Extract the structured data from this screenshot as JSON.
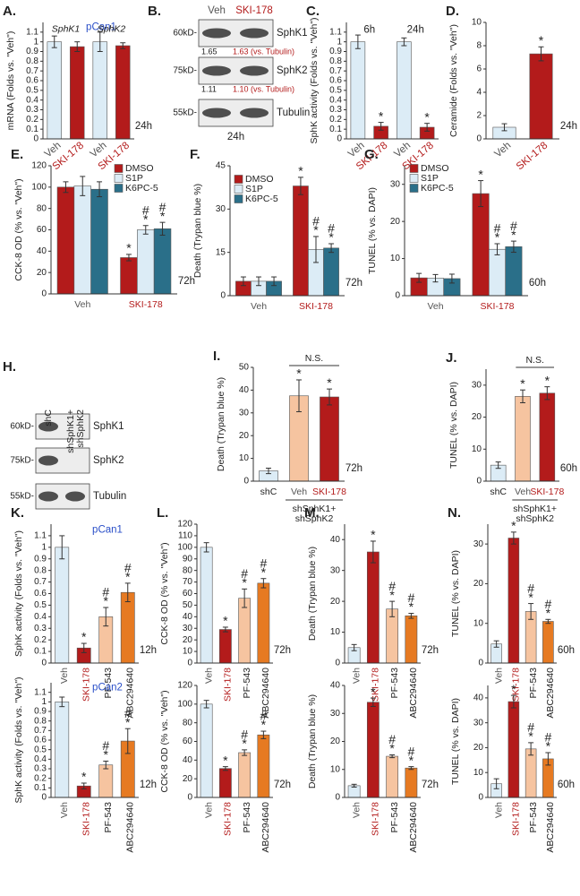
{
  "chart_data": [
    {
      "type": "bar",
      "panel": "A.",
      "ylabel": "mRNA (Folds vs. \"Veh\")",
      "ylim": [
        0,
        1.2
      ],
      "yticks": [
        0,
        0.1,
        0.2,
        0.3,
        0.4,
        0.5,
        0.6,
        0.7,
        0.8,
        0.9,
        1,
        1.1
      ],
      "categories": [
        "Veh",
        "SKI-178",
        "Veh",
        "SKI-178"
      ],
      "label_colors": [
        "#555555",
        "#b31b1b",
        "#555555",
        "#b31b1b"
      ],
      "values": [
        1.0,
        0.95,
        1.0,
        0.96
      ],
      "errors": [
        0.06,
        0.05,
        0.1,
        0.03
      ],
      "colors": [
        "#dcecf6",
        "#b31b1b",
        "#dcecf6",
        "#b31b1b"
      ],
      "cell_line": "pCan1",
      "series_labels": [
        "SphK1",
        "SphK2"
      ],
      "time": "24h"
    },
    {
      "type": "bar",
      "panel": "C.",
      "ylabel": "SphK activity (Folds vs. \"Veh\")",
      "ylim": [
        0,
        1.2
      ],
      "yticks": [
        0,
        0.1,
        0.2,
        0.3,
        0.4,
        0.5,
        0.6,
        0.7,
        0.8,
        0.9,
        1,
        1.1
      ],
      "categories": [
        "Veh",
        "SKI-178",
        "Veh",
        "SKI-178"
      ],
      "label_colors": [
        "#555555",
        "#b31b1b",
        "#555555",
        "#b31b1b"
      ],
      "values": [
        1.0,
        0.13,
        1.0,
        0.12
      ],
      "errors": [
        0.07,
        0.04,
        0.04,
        0.04
      ],
      "colors": [
        "#dcecf6",
        "#b31b1b",
        "#dcecf6",
        "#b31b1b"
      ],
      "annotations": [
        null,
        [
          "*"
        ],
        null,
        [
          "*"
        ]
      ],
      "time_labels": [
        "6h",
        "24h"
      ]
    },
    {
      "type": "bar",
      "panel": "D.",
      "ylabel": "Ceramide (Folds vs. \"Veh\")",
      "ylim": [
        0,
        10
      ],
      "yticks": [
        0,
        2,
        4,
        6,
        8,
        10
      ],
      "categories": [
        "Veh",
        "SKI-178"
      ],
      "label_colors": [
        "#555555",
        "#b31b1b"
      ],
      "values": [
        1.0,
        7.3
      ],
      "errors": [
        0.3,
        0.6
      ],
      "colors": [
        "#dcecf6",
        "#b31b1b"
      ],
      "annotations": [
        null,
        [
          "*"
        ]
      ],
      "time": "24h"
    },
    {
      "type": "bar",
      "panel": "E.",
      "ylabel": "CCK-8 OD (% vs. \"Veh\")",
      "ylim": [
        0,
        120
      ],
      "yticks": [
        0,
        20,
        40,
        60,
        80,
        100,
        120
      ],
      "categories": [
        "Veh",
        "SKI-178"
      ],
      "label_colors": [
        "#555555",
        "#b31b1b"
      ],
      "series": [
        {
          "name": "DMSO",
          "color": "#b31b1b",
          "values": [
            100,
            34
          ],
          "errors": [
            5,
            3
          ],
          "annotations": [
            null,
            [
              "*"
            ]
          ]
        },
        {
          "name": "S1P",
          "color": "#dcecf6",
          "values": [
            101,
            60
          ],
          "errors": [
            9,
            4
          ],
          "annotations": [
            null,
            [
              "#",
              "*"
            ]
          ]
        },
        {
          "name": "K6PC-5",
          "color": "#2a6f89",
          "values": [
            98,
            61
          ],
          "errors": [
            7,
            6
          ],
          "annotations": [
            null,
            [
              "#",
              "*"
            ]
          ]
        }
      ],
      "time": "72h"
    },
    {
      "type": "bar",
      "panel": "F.",
      "ylabel": "Death (Trypan blue %)",
      "ylim": [
        0,
        45
      ],
      "yticks": [
        0,
        15,
        30,
        45
      ],
      "categories": [
        "Veh",
        "SKI-178"
      ],
      "label_colors": [
        "#555555",
        "#b31b1b"
      ],
      "series": [
        {
          "name": "DMSO",
          "color": "#b31b1b",
          "values": [
            5,
            38
          ],
          "errors": [
            1.5,
            3
          ],
          "annotations": [
            null,
            [
              "*"
            ]
          ]
        },
        {
          "name": "S1P",
          "color": "#dcecf6",
          "values": [
            5,
            16
          ],
          "errors": [
            1.5,
            4.5
          ],
          "annotations": [
            null,
            [
              "#",
              "*"
            ]
          ]
        },
        {
          "name": "K6PC-5",
          "color": "#2a6f89",
          "values": [
            5,
            16.5
          ],
          "errors": [
            1.5,
            1.5
          ],
          "annotations": [
            null,
            [
              "#",
              "*"
            ]
          ]
        }
      ],
      "time": "72h"
    },
    {
      "type": "bar",
      "panel": "G.",
      "ylabel": "TUNEL (% vs. DAPI)",
      "ylim": [
        0,
        35
      ],
      "yticks": [
        0,
        10,
        20,
        30
      ],
      "categories": [
        "Veh",
        "SKI-178"
      ],
      "label_colors": [
        "#555555",
        "#b31b1b"
      ],
      "series": [
        {
          "name": "DMSO",
          "color": "#b31b1b",
          "values": [
            4.8,
            27.5
          ],
          "errors": [
            1.2,
            3.5
          ],
          "annotations": [
            null,
            [
              "*"
            ]
          ]
        },
        {
          "name": "S1P",
          "color": "#dcecf6",
          "values": [
            4.7,
            12.5
          ],
          "errors": [
            1,
            1.5
          ],
          "annotations": [
            null,
            [
              "#",
              "*"
            ]
          ]
        },
        {
          "name": "K6PC-5",
          "color": "#2a6f89",
          "values": [
            4.6,
            13.2
          ],
          "errors": [
            1.2,
            1.5
          ],
          "annotations": [
            null,
            [
              "#",
              "*"
            ]
          ]
        }
      ],
      "time": "60h"
    },
    {
      "type": "bar",
      "panel": "I.",
      "ylabel": "Death (Trypan blue %)",
      "ylim": [
        0,
        50
      ],
      "yticks": [
        0,
        10,
        20,
        30,
        40,
        50
      ],
      "categories": [
        "shC",
        "Veh",
        "SKI-178"
      ],
      "label_colors": [
        "#222222",
        "#555555",
        "#b31b1b"
      ],
      "values": [
        4.5,
        37.5,
        37
      ],
      "errors": [
        1.2,
        7,
        3.5
      ],
      "colors": [
        "#dcecf6",
        "#f6c4a0",
        "#b31b1b"
      ],
      "annotations": [
        null,
        [
          "*"
        ],
        [
          "*"
        ]
      ],
      "ns_label": "N.S.",
      "group_label": [
        "shSphK1+",
        "shSphK2"
      ],
      "time": "72h"
    },
    {
      "type": "bar",
      "panel": "J.",
      "ylabel": "TUNEL (% vs. DAPI)",
      "ylim": [
        0,
        35
      ],
      "yticks": [
        0,
        10,
        20,
        30
      ],
      "categories": [
        "shC",
        "Veh",
        "SKI-178"
      ],
      "label_colors": [
        "#222222",
        "#555555",
        "#b31b1b"
      ],
      "values": [
        5,
        26.5,
        27.5
      ],
      "errors": [
        1,
        2,
        2
      ],
      "colors": [
        "#dcecf6",
        "#f6c4a0",
        "#b31b1b"
      ],
      "annotations": [
        null,
        [
          "*"
        ],
        [
          "*"
        ]
      ],
      "ns_label": "N.S.",
      "group_label": [
        "shSphK1+",
        "shSphK2"
      ],
      "time": "60h"
    },
    {
      "type": "bar",
      "panel": "K.",
      "ylabel": "SphK activity (Folds vs. \"Veh\")",
      "ylim": [
        0,
        1.2
      ],
      "yticks": [
        0,
        0.1,
        0.2,
        0.3,
        0.4,
        0.5,
        0.6,
        0.7,
        0.8,
        0.9,
        1,
        1.1
      ],
      "categories": [
        "Veh",
        "SKI-178",
        "PF-543",
        "ABC294640"
      ],
      "label_colors": [
        "#555555",
        "#b31b1b",
        "#222222",
        "#222222"
      ],
      "values": [
        1.0,
        0.13,
        0.4,
        0.61
      ],
      "errors": [
        0.1,
        0.04,
        0.08,
        0.08
      ],
      "colors": [
        "#dcecf6",
        "#b31b1b",
        "#f6c4a0",
        "#e67a22"
      ],
      "annotations": [
        null,
        [
          "*"
        ],
        [
          "#",
          "*"
        ],
        [
          "#",
          "*"
        ]
      ],
      "cell_line": "pCan1",
      "time": "12h"
    },
    {
      "type": "bar",
      "panel": "L.",
      "ylabel": "CCK-8 OD (% vs. \"Veh\")",
      "ylim": [
        0,
        120
      ],
      "yticks": [
        0,
        10,
        20,
        30,
        40,
        50,
        60,
        70,
        80,
        90,
        100,
        110,
        120
      ],
      "categories": [
        "Veh",
        "SKI-178",
        "PF-543",
        "ABC294640"
      ],
      "label_colors": [
        "#555555",
        "#b31b1b",
        "#222222",
        "#222222"
      ],
      "values": [
        100,
        29,
        56,
        69
      ],
      "errors": [
        4,
        2,
        8,
        4
      ],
      "colors": [
        "#dcecf6",
        "#b31b1b",
        "#f6c4a0",
        "#e67a22"
      ],
      "annotations": [
        null,
        [
          "*"
        ],
        [
          "#",
          "*"
        ],
        [
          "#",
          "*"
        ]
      ],
      "time": "72h"
    },
    {
      "type": "bar",
      "panel": "M.",
      "ylabel": "Death (Trypan blue %)",
      "ylim": [
        0,
        45
      ],
      "yticks": [
        0,
        10,
        20,
        30,
        40
      ],
      "categories": [
        "Veh",
        "SKI-178",
        "PF-543",
        "ABC294640"
      ],
      "label_colors": [
        "#555555",
        "#b31b1b",
        "#222222",
        "#222222"
      ],
      "values": [
        5,
        36,
        17.5,
        15.3
      ],
      "errors": [
        1,
        3.5,
        2.5,
        0.8
      ],
      "colors": [
        "#dcecf6",
        "#b31b1b",
        "#f6c4a0",
        "#e67a22"
      ],
      "annotations": [
        null,
        [
          "*"
        ],
        [
          "#",
          "*"
        ],
        [
          "#",
          "*"
        ]
      ],
      "time": "72h"
    },
    {
      "type": "bar",
      "panel": "N.",
      "ylabel": "TUNEL (% vs. DAPI)",
      "ylim": [
        0,
        35
      ],
      "yticks": [
        0,
        10,
        20,
        30
      ],
      "categories": [
        "Veh",
        "SKI-178",
        "PF-543",
        "ABC294640"
      ],
      "label_colors": [
        "#555555",
        "#b31b1b",
        "#222222",
        "#222222"
      ],
      "values": [
        4.8,
        31.5,
        13,
        10.5
      ],
      "errors": [
        0.8,
        1.5,
        2,
        0.5
      ],
      "colors": [
        "#dcecf6",
        "#b31b1b",
        "#f6c4a0",
        "#e67a22"
      ],
      "annotations": [
        null,
        [
          "*"
        ],
        [
          "#",
          "*"
        ],
        [
          "#",
          "*"
        ]
      ],
      "time": "60h"
    },
    {
      "type": "bar",
      "ylabel": "SphK activity (Folds vs. \"Veh\")",
      "ylim": [
        0,
        1.2
      ],
      "yticks": [
        0,
        0.1,
        0.2,
        0.3,
        0.4,
        0.5,
        0.6,
        0.7,
        0.8,
        0.9,
        1,
        1.1
      ],
      "categories": [
        "Veh",
        "SKI-178",
        "PF-543",
        "ABC294640"
      ],
      "label_colors": [
        "#555555",
        "#b31b1b",
        "#222222",
        "#222222"
      ],
      "values": [
        1.0,
        0.12,
        0.34,
        0.59
      ],
      "errors": [
        0.05,
        0.03,
        0.04,
        0.13
      ],
      "colors": [
        "#dcecf6",
        "#b31b1b",
        "#f6c4a0",
        "#e67a22"
      ],
      "annotations": [
        null,
        [
          "*"
        ],
        [
          "#",
          "*"
        ],
        [
          "#",
          "*"
        ]
      ],
      "cell_line": "pCan2",
      "time": "12h"
    },
    {
      "type": "bar",
      "ylabel": "CCK-8 OD (% vs. \"Veh\")",
      "ylim": [
        0,
        120
      ],
      "yticks": [
        0,
        20,
        40,
        60,
        80,
        100,
        120
      ],
      "categories": [
        "Veh",
        "SKI-178",
        "PF-543",
        "ABC294640"
      ],
      "label_colors": [
        "#555555",
        "#b31b1b",
        "#222222",
        "#222222"
      ],
      "values": [
        100,
        31,
        48,
        67
      ],
      "errors": [
        4,
        2,
        3,
        4
      ],
      "colors": [
        "#dcecf6",
        "#b31b1b",
        "#f6c4a0",
        "#e67a22"
      ],
      "annotations": [
        null,
        [
          "*"
        ],
        [
          "#",
          "*"
        ],
        [
          "#",
          "*"
        ]
      ],
      "time": "72h"
    },
    {
      "type": "bar",
      "ylabel": "Death (Trypan blue %)",
      "ylim": [
        0,
        40
      ],
      "yticks": [
        0,
        10,
        20,
        30,
        40
      ],
      "categories": [
        "Veh",
        "SKI-178",
        "PF-543",
        "ABC294640"
      ],
      "label_colors": [
        "#555555",
        "#b31b1b",
        "#222222",
        "#222222"
      ],
      "values": [
        4.2,
        34,
        14.7,
        10.5
      ],
      "errors": [
        0.5,
        1.5,
        0.5,
        0.5
      ],
      "colors": [
        "#dcecf6",
        "#b31b1b",
        "#f6c4a0",
        "#e67a22"
      ],
      "annotations": [
        null,
        [
          "*"
        ],
        [
          "#",
          "*"
        ],
        [
          "#",
          "*"
        ]
      ],
      "time": "72h"
    },
    {
      "type": "bar",
      "ylabel": "TUNEL (% vs. DAPI)",
      "ylim": [
        0,
        45
      ],
      "yticks": [
        0,
        10,
        20,
        30,
        40
      ],
      "categories": [
        "Veh",
        "SKI-178",
        "PF-543",
        "ABC294640"
      ],
      "label_colors": [
        "#555555",
        "#b31b1b",
        "#222222",
        "#222222"
      ],
      "values": [
        5.5,
        38.5,
        19.5,
        15.5
      ],
      "errors": [
        2,
        2.5,
        2.5,
        2.5
      ],
      "colors": [
        "#dcecf6",
        "#b31b1b",
        "#f6c4a0",
        "#e67a22"
      ],
      "annotations": [
        null,
        [
          "*"
        ],
        [
          "#",
          "*"
        ],
        [
          "#",
          "*"
        ]
      ],
      "time": "60h"
    }
  ],
  "blot_B": {
    "panel": "B.",
    "lanes": [
      [
        "Veh"
      ],
      [
        "SKI-178"
      ]
    ],
    "markers": [
      "60kD-",
      "75kD-",
      "55kD-"
    ],
    "proteins": [
      "SphK1",
      "SphK2",
      "Tubulin"
    ],
    "quant": [
      [
        "1.65",
        "1.63 (vs. Tubulin)"
      ],
      [
        "1.11",
        "1.10 (vs. Tubulin)"
      ]
    ],
    "time": "24h"
  },
  "blot_H": {
    "panel": "H.",
    "lanes": [
      [
        "shC"
      ],
      [
        "shSphK1+",
        "shSphK2"
      ]
    ],
    "markers": [
      "60kD-",
      "75kD-",
      "55kD-"
    ],
    "proteins": [
      "SphK1",
      "SphK2",
      "Tubulin"
    ]
  }
}
